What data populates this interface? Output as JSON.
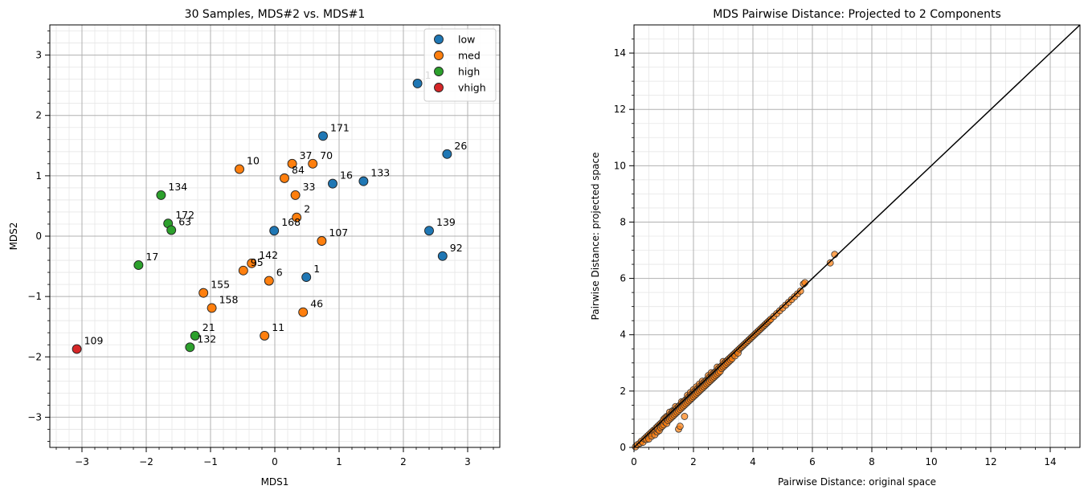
{
  "chart_data": [
    {
      "type": "scatter",
      "title": "30 Samples, MDS#2 vs. MDS#1",
      "xlabel": "MDS1",
      "ylabel": "MDS2",
      "xlim": [
        -3.5,
        3.5
      ],
      "ylim": [
        -3.5,
        3.5
      ],
      "xticks": [
        "−3",
        "−2",
        "−1",
        "0",
        "1",
        "2",
        "3"
      ],
      "yticks": [
        "−3",
        "−2",
        "−1",
        "0",
        "1",
        "2",
        "3"
      ],
      "grid": true,
      "legend_position": "top-right",
      "series": [
        {
          "name": "low",
          "color": "#1f77b4",
          "points": [
            {
              "x": 2.22,
              "y": 2.53,
              "label": "1"
            },
            {
              "x": 0.75,
              "y": 1.66,
              "label": "171"
            },
            {
              "x": 2.68,
              "y": 1.36,
              "label": "26"
            },
            {
              "x": 0.9,
              "y": 0.87,
              "label": "16"
            },
            {
              "x": 1.38,
              "y": 0.91,
              "label": "133"
            },
            {
              "x": -0.01,
              "y": 0.09,
              "label": "168"
            },
            {
              "x": 2.4,
              "y": 0.09,
              "label": "139"
            },
            {
              "x": 2.61,
              "y": -0.33,
              "label": "92"
            },
            {
              "x": 0.49,
              "y": -0.68,
              "label": "1"
            }
          ]
        },
        {
          "name": "med",
          "color": "#ff7f0e",
          "points": [
            {
              "x": -0.55,
              "y": 1.11,
              "label": "10"
            },
            {
              "x": 0.27,
              "y": 1.2,
              "label": "37"
            },
            {
              "x": 0.59,
              "y": 1.2,
              "label": "70"
            },
            {
              "x": 0.15,
              "y": 0.96,
              "label": "84"
            },
            {
              "x": 0.32,
              "y": 0.68,
              "label": "33"
            },
            {
              "x": 0.34,
              "y": 0.31,
              "label": "2"
            },
            {
              "x": 0.73,
              "y": -0.08,
              "label": "107"
            },
            {
              "x": -0.36,
              "y": -0.45,
              "label": "142"
            },
            {
              "x": -0.49,
              "y": -0.57,
              "label": "95"
            },
            {
              "x": -0.09,
              "y": -0.74,
              "label": "6"
            },
            {
              "x": -1.11,
              "y": -0.94,
              "label": "155"
            },
            {
              "x": -0.98,
              "y": -1.19,
              "label": "158"
            },
            {
              "x": 0.44,
              "y": -1.26,
              "label": "46"
            },
            {
              "x": -0.16,
              "y": -1.65,
              "label": "11"
            }
          ]
        },
        {
          "name": "high",
          "color": "#2ca02c",
          "points": [
            {
              "x": -1.77,
              "y": 0.68,
              "label": "134"
            },
            {
              "x": -1.66,
              "y": 0.21,
              "label": "172"
            },
            {
              "x": -1.61,
              "y": 0.1,
              "label": "63"
            },
            {
              "x": -2.12,
              "y": -0.48,
              "label": "17"
            },
            {
              "x": -1.24,
              "y": -1.65,
              "label": "21"
            },
            {
              "x": -1.32,
              "y": -1.84,
              "label": "132"
            }
          ]
        },
        {
          "name": "vhigh",
          "color": "#d62728",
          "points": [
            {
              "x": -3.08,
              "y": -1.87,
              "label": "109"
            }
          ]
        }
      ]
    },
    {
      "type": "scatter",
      "title": "MDS Pairwise Distance: Projected to 2 Components",
      "xlabel": "Pairwise Distance: original space",
      "ylabel": "Pairwise Distance: projected space",
      "xlim": [
        0,
        15
      ],
      "ylim": [
        0,
        15
      ],
      "xticks": [
        "0",
        "2",
        "4",
        "6",
        "8",
        "10",
        "12",
        "14"
      ],
      "yticks": [
        "0",
        "2",
        "4",
        "6",
        "8",
        "10",
        "12",
        "14"
      ],
      "grid": true,
      "point_color": "#ff7f0e",
      "line_color": "#000000",
      "reference_line": [
        [
          0,
          0
        ],
        [
          15,
          15
        ]
      ],
      "points_summary": "435 pairwise distances closely following y = x",
      "points": [
        [
          0.05,
          0.02
        ],
        [
          0.12,
          0.1
        ],
        [
          0.2,
          0.15
        ],
        [
          0.25,
          0.22
        ],
        [
          0.3,
          0.18
        ],
        [
          0.35,
          0.3
        ],
        [
          0.4,
          0.35
        ],
        [
          0.42,
          0.28
        ],
        [
          0.45,
          0.4
        ],
        [
          0.5,
          0.45
        ],
        [
          0.5,
          0.3
        ],
        [
          0.55,
          0.5
        ],
        [
          0.6,
          0.55
        ],
        [
          0.6,
          0.4
        ],
        [
          0.65,
          0.6
        ],
        [
          0.7,
          0.62
        ],
        [
          0.7,
          0.45
        ],
        [
          0.75,
          0.7
        ],
        [
          0.78,
          0.55
        ],
        [
          0.8,
          0.75
        ],
        [
          0.8,
          0.65
        ],
        [
          0.85,
          0.8
        ],
        [
          0.85,
          0.6
        ],
        [
          0.9,
          0.85
        ],
        [
          0.9,
          0.7
        ],
        [
          0.95,
          0.9
        ],
        [
          0.95,
          0.75
        ],
        [
          1.0,
          0.95
        ],
        [
          1.0,
          0.8
        ],
        [
          1.0,
          1.0
        ],
        [
          1.05,
          0.9
        ],
        [
          1.05,
          1.05
        ],
        [
          1.1,
          1.05
        ],
        [
          1.1,
          0.85
        ],
        [
          1.1,
          1.1
        ],
        [
          1.15,
          1.1
        ],
        [
          1.15,
          0.95
        ],
        [
          1.2,
          1.15
        ],
        [
          1.2,
          1.0
        ],
        [
          1.2,
          1.25
        ],
        [
          1.25,
          1.2
        ],
        [
          1.25,
          1.05
        ],
        [
          1.3,
          1.25
        ],
        [
          1.3,
          1.1
        ],
        [
          1.3,
          1.3
        ],
        [
          1.35,
          1.3
        ],
        [
          1.35,
          1.15
        ],
        [
          1.4,
          1.35
        ],
        [
          1.4,
          1.2
        ],
        [
          1.4,
          1.45
        ],
        [
          1.45,
          1.4
        ],
        [
          1.45,
          1.25
        ],
        [
          1.5,
          1.45
        ],
        [
          1.5,
          1.3
        ],
        [
          1.5,
          0.65
        ],
        [
          1.55,
          1.5
        ],
        [
          1.55,
          1.35
        ],
        [
          1.55,
          0.75
        ],
        [
          1.6,
          1.55
        ],
        [
          1.6,
          1.4
        ],
        [
          1.6,
          1.62
        ],
        [
          1.65,
          1.6
        ],
        [
          1.65,
          1.45
        ],
        [
          1.7,
          1.65
        ],
        [
          1.7,
          1.5
        ],
        [
          1.7,
          1.1
        ],
        [
          1.75,
          1.7
        ],
        [
          1.75,
          1.55
        ],
        [
          1.8,
          1.75
        ],
        [
          1.8,
          1.6
        ],
        [
          1.8,
          1.85
        ],
        [
          1.85,
          1.8
        ],
        [
          1.85,
          1.65
        ],
        [
          1.9,
          1.85
        ],
        [
          1.9,
          1.7
        ],
        [
          1.9,
          1.95
        ],
        [
          1.95,
          1.9
        ],
        [
          1.95,
          1.75
        ],
        [
          2.0,
          1.95
        ],
        [
          2.0,
          1.8
        ],
        [
          2.0,
          2.05
        ],
        [
          2.05,
          2.0
        ],
        [
          2.05,
          1.85
        ],
        [
          2.1,
          2.05
        ],
        [
          2.1,
          1.9
        ],
        [
          2.1,
          2.15
        ],
        [
          2.15,
          2.1
        ],
        [
          2.15,
          1.95
        ],
        [
          2.2,
          2.15
        ],
        [
          2.2,
          2.0
        ],
        [
          2.2,
          2.25
        ],
        [
          2.25,
          2.2
        ],
        [
          2.25,
          2.05
        ],
        [
          2.3,
          2.25
        ],
        [
          2.3,
          2.1
        ],
        [
          2.3,
          2.35
        ],
        [
          2.35,
          2.3
        ],
        [
          2.35,
          2.15
        ],
        [
          2.4,
          2.35
        ],
        [
          2.4,
          2.2
        ],
        [
          2.45,
          2.4
        ],
        [
          2.45,
          2.25
        ],
        [
          2.5,
          2.45
        ],
        [
          2.5,
          2.3
        ],
        [
          2.5,
          2.55
        ],
        [
          2.55,
          2.5
        ],
        [
          2.55,
          2.35
        ],
        [
          2.6,
          2.55
        ],
        [
          2.6,
          2.4
        ],
        [
          2.6,
          2.65
        ],
        [
          2.65,
          2.6
        ],
        [
          2.65,
          2.45
        ],
        [
          2.7,
          2.65
        ],
        [
          2.7,
          2.5
        ],
        [
          2.75,
          2.7
        ],
        [
          2.75,
          2.55
        ],
        [
          2.8,
          2.75
        ],
        [
          2.8,
          2.6
        ],
        [
          2.8,
          2.85
        ],
        [
          2.85,
          2.8
        ],
        [
          2.85,
          2.65
        ],
        [
          2.9,
          2.85
        ],
        [
          2.9,
          2.7
        ],
        [
          2.95,
          2.9
        ],
        [
          2.95,
          2.8
        ],
        [
          3.0,
          2.95
        ],
        [
          3.0,
          2.85
        ],
        [
          3.0,
          3.05
        ],
        [
          3.05,
          3.0
        ],
        [
          3.05,
          2.9
        ],
        [
          3.1,
          3.05
        ],
        [
          3.1,
          2.95
        ],
        [
          3.15,
          3.1
        ],
        [
          3.15,
          3.0
        ],
        [
          3.2,
          3.15
        ],
        [
          3.2,
          3.05
        ],
        [
          3.25,
          3.2
        ],
        [
          3.25,
          3.1
        ],
        [
          3.3,
          3.25
        ],
        [
          3.3,
          3.15
        ],
        [
          3.35,
          3.3
        ],
        [
          3.4,
          3.35
        ],
        [
          3.4,
          3.25
        ],
        [
          3.45,
          3.4
        ],
        [
          3.5,
          3.45
        ],
        [
          3.5,
          3.35
        ],
        [
          3.55,
          3.5
        ],
        [
          3.6,
          3.55
        ],
        [
          3.65,
          3.6
        ],
        [
          3.7,
          3.65
        ],
        [
          3.75,
          3.7
        ],
        [
          3.8,
          3.75
        ],
        [
          3.85,
          3.8
        ],
        [
          3.9,
          3.85
        ],
        [
          3.95,
          3.9
        ],
        [
          4.0,
          3.95
        ],
        [
          4.05,
          4.0
        ],
        [
          4.1,
          4.05
        ],
        [
          4.15,
          4.1
        ],
        [
          4.2,
          4.15
        ],
        [
          4.25,
          4.2
        ],
        [
          4.3,
          4.25
        ],
        [
          4.35,
          4.3
        ],
        [
          4.4,
          4.35
        ],
        [
          4.45,
          4.4
        ],
        [
          4.5,
          4.45
        ],
        [
          4.55,
          4.5
        ],
        [
          4.6,
          4.55
        ],
        [
          4.7,
          4.65
        ],
        [
          4.8,
          4.75
        ],
        [
          4.9,
          4.85
        ],
        [
          5.0,
          4.95
        ],
        [
          5.1,
          5.05
        ],
        [
          5.2,
          5.15
        ],
        [
          5.3,
          5.25
        ],
        [
          5.4,
          5.35
        ],
        [
          5.5,
          5.45
        ],
        [
          5.6,
          5.55
        ],
        [
          5.7,
          5.8
        ],
        [
          5.75,
          5.85
        ],
        [
          6.6,
          6.55
        ],
        [
          6.75,
          6.85
        ]
      ]
    }
  ]
}
